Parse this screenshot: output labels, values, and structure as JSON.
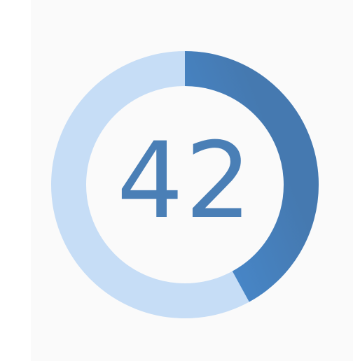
{
  "gauge": {
    "value_label": "42",
    "progress_fraction": 0.42,
    "colors": {
      "track": "#c6ddf6",
      "fill_start": "#4b9df0",
      "fill_end": "#4579b0",
      "text": "#4a7fb6",
      "background": "#fafafa"
    }
  }
}
